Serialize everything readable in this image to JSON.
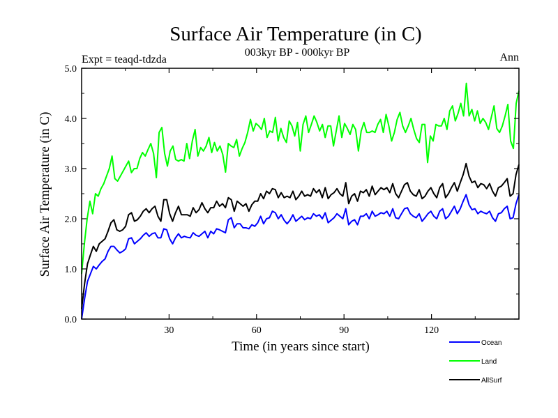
{
  "chart_data": {
    "type": "line",
    "title": "Surface Air Temperature (in C)",
    "subtitle": "003kyr BP - 000kyr BP",
    "left_label": "Expt = teaqd-tdzda",
    "right_label": "Ann",
    "xlabel": "Time (in years since start)",
    "ylabel": "Surface Air Temperature (in C)",
    "xlim": [
      0,
      150
    ],
    "ylim": [
      0,
      5
    ],
    "x_ticks": [
      30,
      60,
      90,
      120
    ],
    "x_tick_labels": [
      "30",
      "60",
      "90",
      "120"
    ],
    "y_ticks": [
      0,
      1,
      2,
      3,
      4,
      5
    ],
    "y_tick_labels": [
      "0.0",
      "1.0",
      "2.0",
      "3.0",
      "4.0",
      "5.0"
    ],
    "legend_position": "bottom-right",
    "series": [
      {
        "name": "Ocean",
        "color": "#0000ff",
        "values": [
          0.0,
          0.4,
          0.75,
          0.9,
          1.05,
          1.0,
          1.08,
          1.15,
          1.2,
          1.35,
          1.45,
          1.45,
          1.38,
          1.32,
          1.35,
          1.4,
          1.6,
          1.62,
          1.5,
          1.55,
          1.6,
          1.67,
          1.72,
          1.65,
          1.7,
          1.72,
          1.62,
          1.62,
          1.8,
          1.78,
          1.6,
          1.5,
          1.62,
          1.7,
          1.62,
          1.65,
          1.63,
          1.62,
          1.72,
          1.67,
          1.65,
          1.7,
          1.75,
          1.62,
          1.75,
          1.7,
          1.8,
          1.78,
          1.75,
          1.72,
          1.98,
          2.02,
          1.82,
          1.9,
          1.9,
          1.82,
          1.82,
          1.8,
          1.88,
          1.85,
          1.92,
          2.05,
          1.9,
          2.0,
          2.02,
          2.15,
          2.12,
          2.0,
          2.08,
          1.97,
          1.9,
          1.97,
          2.08,
          1.95,
          2.0,
          2.05,
          1.98,
          2.02,
          2.0,
          2.1,
          2.05,
          2.08,
          2.0,
          2.12,
          1.92,
          1.97,
          2.02,
          2.1,
          2.05,
          2.0,
          2.2,
          1.88,
          1.95,
          1.98,
          1.88,
          2.05,
          2.05,
          2.1,
          2.0,
          2.15,
          2.05,
          2.08,
          2.12,
          2.1,
          2.15,
          2.05,
          2.2,
          2.02,
          2.0,
          2.1,
          2.2,
          2.22,
          2.1,
          2.05,
          2.02,
          2.1,
          1.95,
          2.02,
          2.1,
          2.15,
          2.05,
          2.0,
          2.15,
          2.2,
          2.0,
          2.05,
          2.15,
          2.25,
          2.1,
          2.2,
          2.35,
          2.48,
          2.28,
          2.18,
          2.2,
          2.1,
          2.15,
          2.12,
          2.1,
          2.15,
          2.02,
          1.95,
          2.1,
          2.12,
          2.2,
          2.25,
          2.0,
          2.02,
          2.3,
          2.48
        ]
      },
      {
        "name": "Land",
        "color": "#00ff00",
        "values": [
          0.9,
          1.5,
          2.0,
          2.35,
          2.1,
          2.5,
          2.45,
          2.6,
          2.7,
          2.85,
          3.0,
          3.25,
          2.8,
          2.75,
          2.85,
          2.95,
          3.05,
          3.15,
          2.92,
          3.0,
          3.0,
          3.2,
          3.32,
          3.25,
          3.38,
          3.5,
          3.3,
          2.82,
          3.72,
          3.82,
          3.3,
          3.05,
          3.35,
          3.45,
          3.18,
          3.15,
          3.18,
          3.15,
          3.5,
          3.2,
          3.55,
          3.78,
          3.25,
          3.42,
          3.35,
          3.45,
          3.62,
          3.32,
          3.52,
          3.35,
          3.45,
          3.28,
          2.93,
          3.5,
          3.45,
          3.42,
          3.58,
          3.25,
          3.4,
          3.52,
          3.72,
          3.98,
          3.75,
          3.9,
          3.85,
          3.78,
          4.0,
          3.62,
          3.75,
          3.72,
          4.02,
          3.55,
          3.8,
          3.62,
          3.52,
          3.95,
          3.85,
          3.65,
          3.92,
          3.35,
          3.88,
          4.05,
          3.72,
          3.88,
          4.05,
          3.92,
          3.75,
          3.88,
          3.62,
          3.85,
          3.85,
          3.45,
          3.75,
          4.05,
          3.62,
          3.9,
          3.8,
          3.68,
          3.88,
          3.78,
          3.35,
          3.75,
          3.92,
          3.72,
          3.72,
          3.75,
          3.72,
          3.88,
          3.98,
          3.72,
          4.08,
          3.85,
          3.55,
          3.72,
          3.98,
          4.12,
          3.85,
          3.72,
          3.85,
          4.0,
          3.78,
          3.6,
          3.52,
          3.88,
          3.88,
          3.12,
          3.65,
          3.55,
          3.88,
          3.85,
          3.85,
          4.0,
          3.78,
          4.15,
          4.25,
          3.95,
          4.1,
          4.3,
          4.05,
          4.7,
          4.05,
          4.18,
          3.95,
          4.15,
          3.9,
          4.0,
          3.92,
          3.78,
          4.02,
          4.25,
          3.8,
          3.72,
          3.85,
          4.05,
          4.28,
          3.55,
          3.4,
          4.3,
          4.55
        ]
      },
      {
        "name": "AllSurf",
        "color": "#000000",
        "values": [
          0.2,
          0.7,
          1.1,
          1.28,
          1.45,
          1.35,
          1.5,
          1.55,
          1.6,
          1.75,
          1.92,
          1.98,
          1.78,
          1.75,
          1.78,
          1.85,
          2.08,
          2.12,
          1.95,
          1.98,
          2.05,
          2.15,
          2.2,
          2.12,
          2.2,
          2.25,
          2.05,
          1.95,
          2.38,
          2.38,
          2.1,
          1.95,
          2.12,
          2.25,
          2.08,
          2.08,
          2.08,
          2.05,
          2.22,
          2.12,
          2.18,
          2.32,
          2.2,
          2.12,
          2.22,
          2.22,
          2.35,
          2.25,
          2.3,
          2.22,
          2.42,
          2.38,
          2.15,
          2.35,
          2.3,
          2.25,
          2.3,
          2.15,
          2.28,
          2.35,
          2.35,
          2.5,
          2.4,
          2.55,
          2.5,
          2.6,
          2.58,
          2.42,
          2.52,
          2.42,
          2.45,
          2.42,
          2.55,
          2.38,
          2.45,
          2.55,
          2.45,
          2.48,
          2.45,
          2.6,
          2.52,
          2.58,
          2.42,
          2.62,
          2.4,
          2.48,
          2.52,
          2.6,
          2.5,
          2.45,
          2.72,
          2.3,
          2.45,
          2.5,
          2.35,
          2.55,
          2.52,
          2.58,
          2.45,
          2.65,
          2.48,
          2.55,
          2.62,
          2.58,
          2.62,
          2.52,
          2.7,
          2.5,
          2.42,
          2.55,
          2.68,
          2.72,
          2.55,
          2.48,
          2.45,
          2.58,
          2.4,
          2.45,
          2.55,
          2.62,
          2.5,
          2.42,
          2.62,
          2.7,
          2.42,
          2.5,
          2.62,
          2.72,
          2.55,
          2.72,
          2.88,
          3.1,
          2.85,
          2.72,
          2.75,
          2.62,
          2.7,
          2.68,
          2.6,
          2.7,
          2.55,
          2.45,
          2.62,
          2.65,
          2.72,
          2.8,
          2.45,
          2.5,
          2.88,
          3.08
        ]
      }
    ]
  }
}
